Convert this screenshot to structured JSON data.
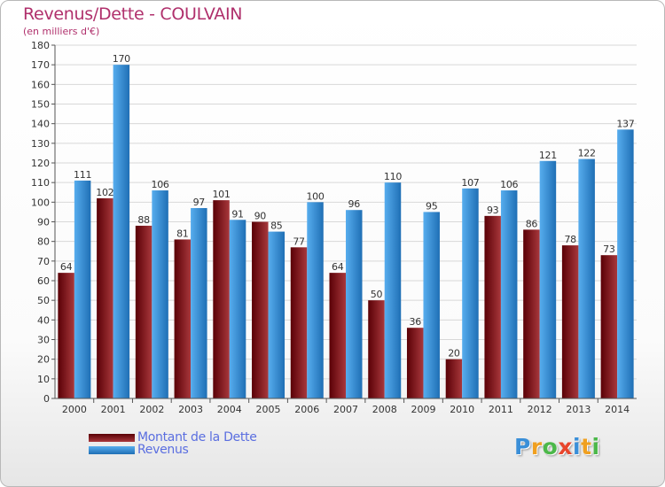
{
  "title": "Revenus/Dette - COULVAIN",
  "subtitle": "(en milliers d'€)",
  "colors": {
    "debt_dark": "#5a0006",
    "debt_light": "#a8383c",
    "rev_dark": "#1f6fb5",
    "rev_light": "#57adee",
    "grid": "#d8d8d8",
    "axis": "#555555",
    "title": "#b0306c",
    "legend_text": "#5a6ee0"
  },
  "chart_data": {
    "type": "bar",
    "title": "Revenus/Dette - COULVAIN",
    "subtitle": "(en milliers d'€)",
    "categories": [
      "2000",
      "2001",
      "2002",
      "2003",
      "2004",
      "2005",
      "2006",
      "2007",
      "2008",
      "2009",
      "2010",
      "2011",
      "2012",
      "2013",
      "2014"
    ],
    "series": [
      {
        "name": "Montant de la Dette",
        "values": [
          64,
          102,
          88,
          81,
          101,
          90,
          77,
          64,
          50,
          36,
          20,
          93,
          86,
          78,
          73
        ]
      },
      {
        "name": "Revenus",
        "values": [
          111,
          170,
          106,
          97,
          91,
          85,
          100,
          96,
          110,
          95,
          107,
          106,
          121,
          122,
          137
        ]
      }
    ],
    "ylim": [
      0,
      180
    ],
    "yticks": [
      0,
      10,
      20,
      30,
      40,
      50,
      60,
      70,
      80,
      90,
      100,
      110,
      120,
      130,
      140,
      150,
      160,
      170,
      180
    ],
    "grid": true,
    "legend_position": "bottom-left"
  },
  "legend": {
    "items": [
      {
        "label": "Montant de la Dette"
      },
      {
        "label": "Revenus"
      }
    ]
  },
  "logo": {
    "letters": [
      {
        "ch": "P",
        "color": "#3a8fd8"
      },
      {
        "ch": "r",
        "color": "#f0a020"
      },
      {
        "ch": "o",
        "color": "#4cb84a"
      },
      {
        "ch": "x",
        "color": "#e8452c"
      },
      {
        "ch": "i",
        "color": "#3a8fd8"
      },
      {
        "ch": "t",
        "color": "#f0a020"
      },
      {
        "ch": "i",
        "color": "#4cb84a"
      }
    ]
  }
}
